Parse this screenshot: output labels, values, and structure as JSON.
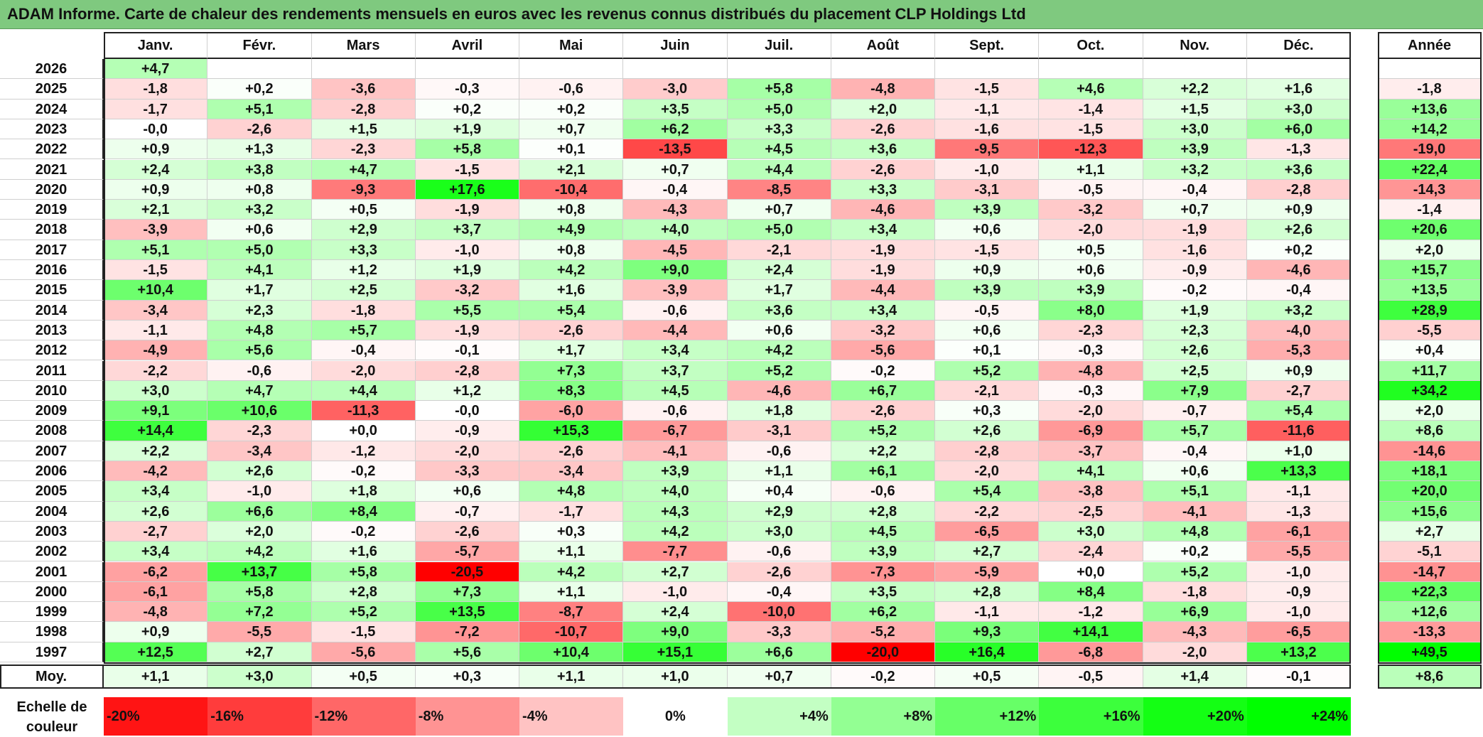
{
  "title": "ADAM Informe. Carte de chaleur des rendements mensuels en euros avec les revenus connus distribués du placement CLP Holdings Ltd",
  "colors": {
    "title_bg": "#7fc97f",
    "negative_max": "#ff0000",
    "neutral": "#ffffff",
    "positive_max": "#00ff00"
  },
  "chart_data": {
    "type": "heatmap",
    "months": [
      "Janv.",
      "Févr.",
      "Mars",
      "Avril",
      "Mai",
      "Juin",
      "Juil.",
      "Août",
      "Sept.",
      "Oct.",
      "Nov.",
      "Déc."
    ],
    "year_col_label": "Année",
    "avg_row_label": "Moy.",
    "rows": [
      {
        "year": "2026",
        "values": [
          "+4,7",
          "",
          "",
          "",
          "",
          "",
          "",
          "",
          "",
          "",
          "",
          ""
        ],
        "annual": ""
      },
      {
        "year": "2025",
        "values": [
          "-1,8",
          "+0,2",
          "-3,6",
          "-0,3",
          "-0,6",
          "-3,0",
          "+5,8",
          "-4,8",
          "-1,5",
          "+4,6",
          "+2,2",
          "+1,6"
        ],
        "annual": "-1,8"
      },
      {
        "year": "2024",
        "values": [
          "-1,7",
          "+5,1",
          "-2,8",
          "+0,2",
          "+0,2",
          "+3,5",
          "+5,0",
          "+2,0",
          "-1,1",
          "-1,4",
          "+1,5",
          "+3,0"
        ],
        "annual": "+13,6"
      },
      {
        "year": "2023",
        "values": [
          "-0,0",
          "-2,6",
          "+1,5",
          "+1,9",
          "+0,7",
          "+6,2",
          "+3,3",
          "-2,6",
          "-1,6",
          "-1,5",
          "+3,0",
          "+6,0"
        ],
        "annual": "+14,2"
      },
      {
        "year": "2022",
        "values": [
          "+0,9",
          "+1,3",
          "-2,3",
          "+5,8",
          "+0,1",
          "-13,5",
          "+4,5",
          "+3,6",
          "-9,5",
          "-12,3",
          "+3,9",
          "-1,3"
        ],
        "annual": "-19,0"
      },
      {
        "year": "2021",
        "values": [
          "+2,4",
          "+3,8",
          "+4,7",
          "-1,5",
          "+2,1",
          "+0,7",
          "+4,4",
          "-2,6",
          "-1,0",
          "+1,1",
          "+3,2",
          "+3,6"
        ],
        "annual": "+22,4"
      },
      {
        "year": "2020",
        "values": [
          "+0,9",
          "+0,8",
          "-9,3",
          "+17,6",
          "-10,4",
          "-0,4",
          "-8,5",
          "+3,3",
          "-3,1",
          "-0,5",
          "-0,4",
          "-2,8"
        ],
        "annual": "-14,3"
      },
      {
        "year": "2019",
        "values": [
          "+2,1",
          "+3,2",
          "+0,5",
          "-1,9",
          "+0,8",
          "-4,3",
          "+0,7",
          "-4,6",
          "+3,9",
          "-3,2",
          "+0,7",
          "+0,9"
        ],
        "annual": "-1,4"
      },
      {
        "year": "2018",
        "values": [
          "-3,9",
          "+0,6",
          "+2,9",
          "+3,7",
          "+4,9",
          "+4,0",
          "+5,0",
          "+3,4",
          "+0,6",
          "-2,0",
          "-1,9",
          "+2,6"
        ],
        "annual": "+20,6"
      },
      {
        "year": "2017",
        "values": [
          "+5,1",
          "+5,0",
          "+3,3",
          "-1,0",
          "+0,8",
          "-4,5",
          "-2,1",
          "-1,9",
          "-1,5",
          "+0,5",
          "-1,6",
          "+0,2"
        ],
        "annual": "+2,0"
      },
      {
        "year": "2016",
        "values": [
          "-1,5",
          "+4,1",
          "+1,2",
          "+1,9",
          "+4,2",
          "+9,0",
          "+2,4",
          "-1,9",
          "+0,9",
          "+0,6",
          "-0,9",
          "-4,6"
        ],
        "annual": "+15,7"
      },
      {
        "year": "2015",
        "values": [
          "+10,4",
          "+1,7",
          "+2,5",
          "-3,2",
          "+1,6",
          "-3,9",
          "+1,7",
          "-4,4",
          "+3,9",
          "+3,9",
          "-0,2",
          "-0,4"
        ],
        "annual": "+13,5"
      },
      {
        "year": "2014",
        "values": [
          "-3,4",
          "+2,3",
          "-1,8",
          "+5,5",
          "+5,4",
          "-0,6",
          "+3,6",
          "+3,4",
          "-0,5",
          "+8,0",
          "+1,9",
          "+3,2"
        ],
        "annual": "+28,9"
      },
      {
        "year": "2013",
        "values": [
          "-1,1",
          "+4,8",
          "+5,7",
          "-1,9",
          "-2,6",
          "-4,4",
          "+0,6",
          "-3,2",
          "+0,6",
          "-2,3",
          "+2,3",
          "-4,0"
        ],
        "annual": "-5,5"
      },
      {
        "year": "2012",
        "values": [
          "-4,9",
          "+5,6",
          "-0,4",
          "-0,1",
          "+1,7",
          "+3,4",
          "+4,2",
          "-5,6",
          "+0,1",
          "-0,3",
          "+2,6",
          "-5,3"
        ],
        "annual": "+0,4"
      },
      {
        "year": "2011",
        "values": [
          "-2,2",
          "-0,6",
          "-2,0",
          "-2,8",
          "+7,3",
          "+3,7",
          "+5,2",
          "-0,2",
          "+5,2",
          "-4,8",
          "+2,5",
          "+0,9"
        ],
        "annual": "+11,7"
      },
      {
        "year": "2010",
        "values": [
          "+3,0",
          "+4,7",
          "+4,4",
          "+1,2",
          "+8,3",
          "+4,5",
          "-4,6",
          "+6,7",
          "-2,1",
          "-0,3",
          "+7,9",
          "-2,7"
        ],
        "annual": "+34,2"
      },
      {
        "year": "2009",
        "values": [
          "+9,1",
          "+10,6",
          "-11,3",
          "-0,0",
          "-6,0",
          "-0,6",
          "+1,8",
          "-2,6",
          "+0,3",
          "-2,0",
          "-0,7",
          "+5,4"
        ],
        "annual": "+2,0"
      },
      {
        "year": "2008",
        "values": [
          "+14,4",
          "-2,3",
          "+0,0",
          "-0,9",
          "+15,3",
          "-6,7",
          "-3,1",
          "+5,2",
          "+2,6",
          "-6,9",
          "+5,7",
          "-11,6"
        ],
        "annual": "+8,6"
      },
      {
        "year": "2007",
        "values": [
          "+2,2",
          "-3,4",
          "-1,2",
          "-2,0",
          "-2,6",
          "-4,1",
          "-0,6",
          "+2,2",
          "-2,8",
          "-3,7",
          "-0,4",
          "+1,0"
        ],
        "annual": "-14,6"
      },
      {
        "year": "2006",
        "values": [
          "-4,2",
          "+2,6",
          "-0,2",
          "-3,3",
          "-3,4",
          "+3,9",
          "+1,1",
          "+6,1",
          "-2,0",
          "+4,1",
          "+0,6",
          "+13,3"
        ],
        "annual": "+18,1"
      },
      {
        "year": "2005",
        "values": [
          "+3,4",
          "-1,0",
          "+1,8",
          "+0,6",
          "+4,8",
          "+4,0",
          "+0,4",
          "-0,6",
          "+5,4",
          "-3,8",
          "+5,1",
          "-1,1"
        ],
        "annual": "+20,0"
      },
      {
        "year": "2004",
        "values": [
          "+2,6",
          "+6,6",
          "+8,4",
          "-0,7",
          "-1,7",
          "+4,3",
          "+2,9",
          "+2,8",
          "-2,2",
          "-2,5",
          "-4,1",
          "-1,3"
        ],
        "annual": "+15,6"
      },
      {
        "year": "2003",
        "values": [
          "-2,7",
          "+2,0",
          "-0,2",
          "-2,6",
          "+0,3",
          "+4,2",
          "+3,0",
          "+4,5",
          "-6,5",
          "+3,0",
          "+4,8",
          "-6,1"
        ],
        "annual": "+2,7"
      },
      {
        "year": "2002",
        "values": [
          "+3,4",
          "+4,2",
          "+1,6",
          "-5,7",
          "+1,1",
          "-7,7",
          "-0,6",
          "+3,9",
          "+2,7",
          "-2,4",
          "+0,2",
          "-5,5"
        ],
        "annual": "-5,1"
      },
      {
        "year": "2001",
        "values": [
          "-6,2",
          "+13,7",
          "+5,8",
          "-20,5",
          "+4,2",
          "+2,7",
          "-2,6",
          "-7,3",
          "-5,9",
          "+0,0",
          "+5,2",
          "-1,0"
        ],
        "annual": "-14,7"
      },
      {
        "year": "2000",
        "values": [
          "-6,1",
          "+5,8",
          "+2,8",
          "+7,3",
          "+1,1",
          "-1,0",
          "-0,4",
          "+3,5",
          "+2,8",
          "+8,4",
          "-1,8",
          "-0,9"
        ],
        "annual": "+22,3"
      },
      {
        "year": "1999",
        "values": [
          "-4,8",
          "+7,2",
          "+5,2",
          "+13,5",
          "-8,7",
          "+2,4",
          "-10,0",
          "+6,2",
          "-1,1",
          "-1,2",
          "+6,9",
          "-1,0"
        ],
        "annual": "+12,6"
      },
      {
        "year": "1998",
        "values": [
          "+0,9",
          "-5,5",
          "-1,5",
          "-7,2",
          "-10,7",
          "+9,0",
          "-3,3",
          "-5,2",
          "+9,3",
          "+14,1",
          "-4,3",
          "-6,5"
        ],
        "annual": "-13,3"
      },
      {
        "year": "1997",
        "values": [
          "+12,5",
          "+2,7",
          "-5,6",
          "+5,6",
          "+10,4",
          "+15,1",
          "+6,6",
          "-20,0",
          "+16,4",
          "-6,8",
          "-2,0",
          "+13,2"
        ],
        "annual": "+49,5"
      }
    ],
    "averages": [
      "+1,1",
      "+3,0",
      "+0,5",
      "+0,3",
      "+1,1",
      "+1,0",
      "+0,7",
      "-0,2",
      "+0,5",
      "-0,5",
      "+1,4",
      "-0,1"
    ],
    "average_annual": "+8,6",
    "scale_label": "Echelle de couleur",
    "scale": [
      {
        "label": "-20%",
        "value": -20
      },
      {
        "label": "-16%",
        "value": -16
      },
      {
        "label": "-12%",
        "value": -12
      },
      {
        "label": "-8%",
        "value": -8
      },
      {
        "label": "-4%",
        "value": -4
      },
      {
        "label": "0%",
        "value": 0
      },
      {
        "label": "+4%",
        "value": 4
      },
      {
        "label": "+8%",
        "value": 8
      },
      {
        "label": "+12%",
        "value": 12
      },
      {
        "label": "+16%",
        "value": 16
      },
      {
        "label": "+20%",
        "value": 20
      },
      {
        "label": "+24%",
        "value": 24
      }
    ]
  }
}
